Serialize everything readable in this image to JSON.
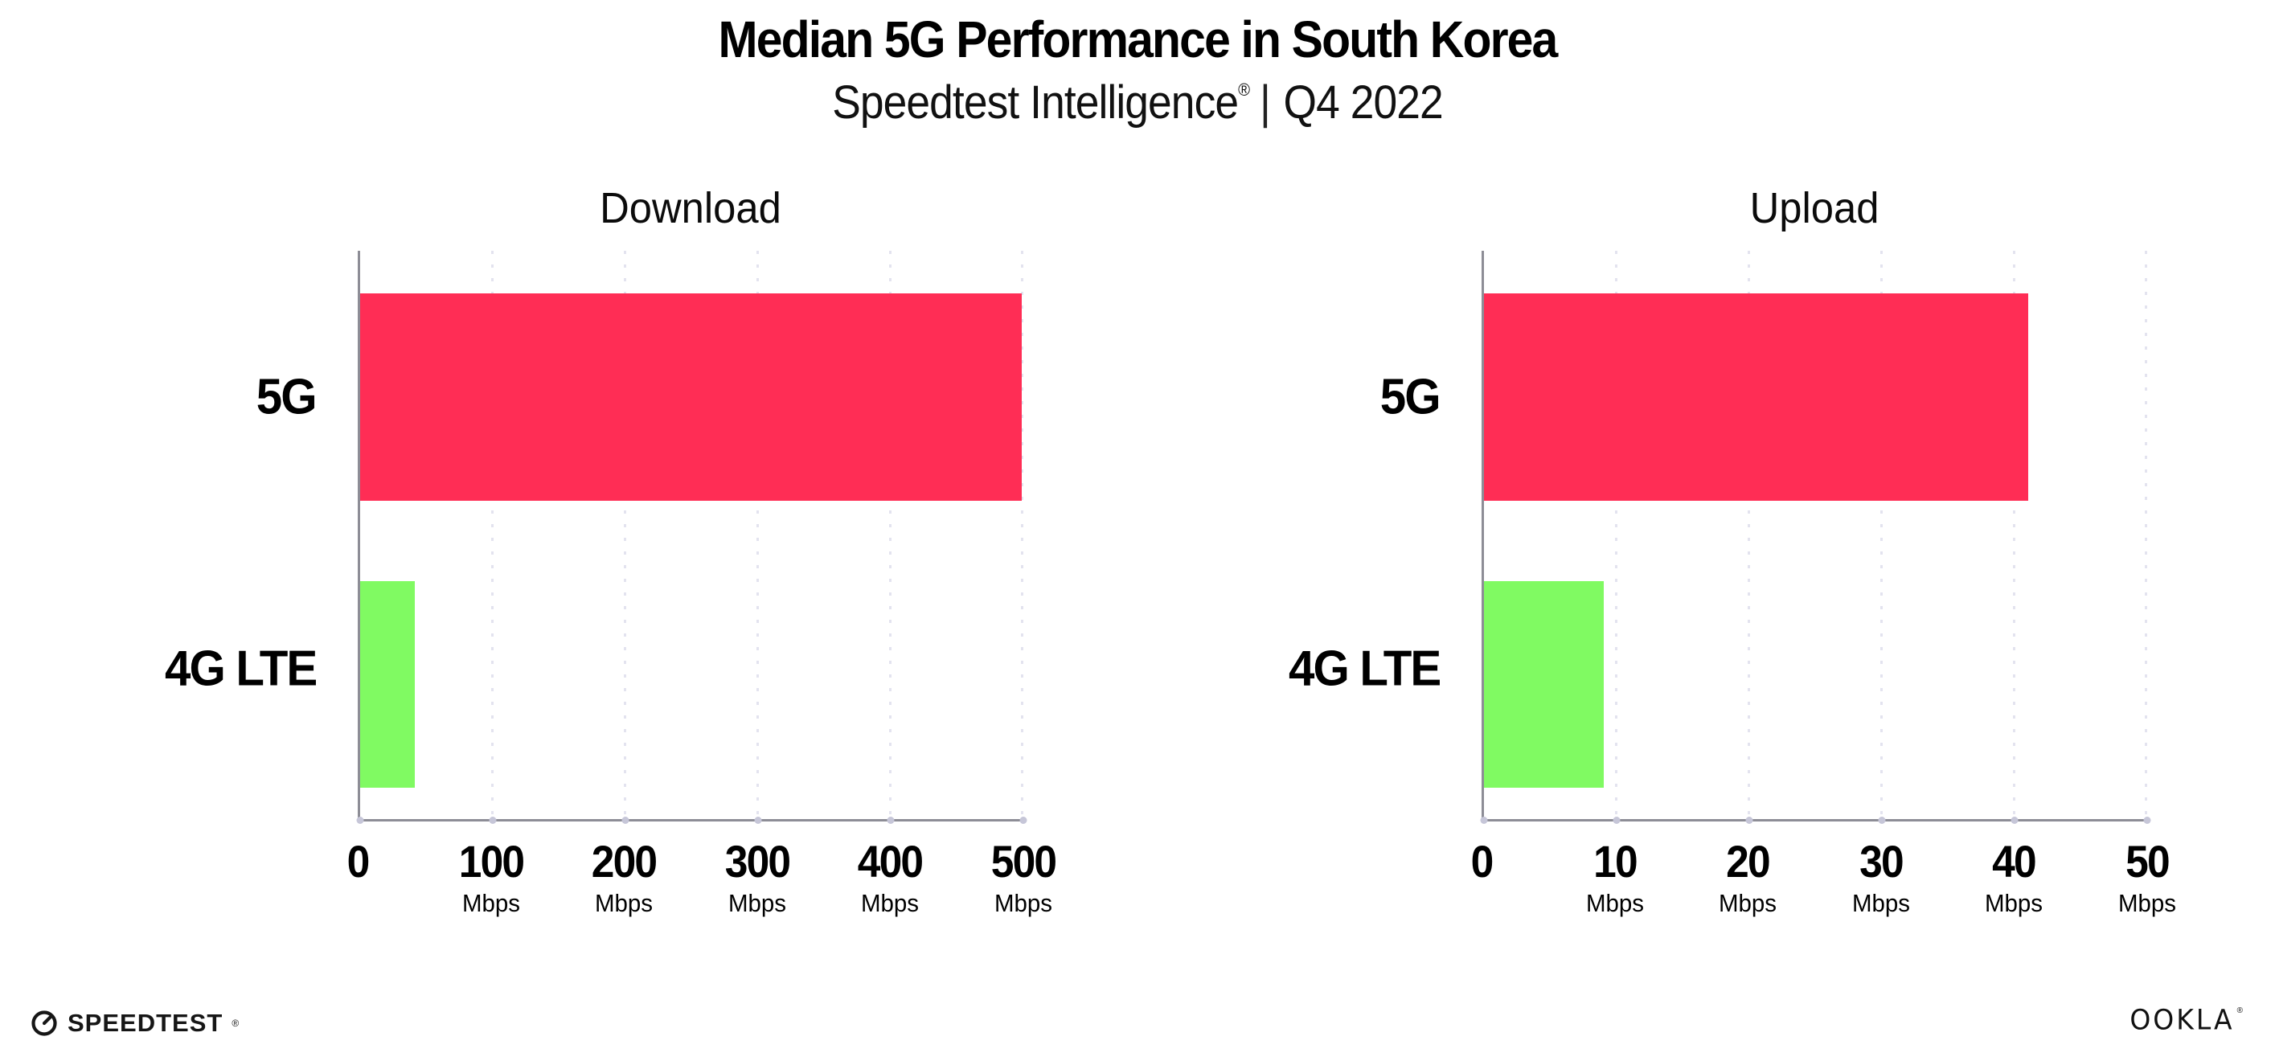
{
  "header": {
    "title": "Median 5G Performance in South Korea",
    "subtitle_brand": "Speedtest Intelligence",
    "subtitle_reg": "®",
    "subtitle_sep": "|",
    "subtitle_period": "Q4 2022"
  },
  "chart_data": [
    {
      "type": "bar",
      "orientation": "horizontal",
      "title": "Download",
      "categories": [
        "5G",
        "4G LTE"
      ],
      "values": [
        499,
        41
      ],
      "unit": "Mbps",
      "xlim": [
        0,
        500
      ],
      "grid": "vertical-dotted",
      "legend": "none",
      "xticks": [
        {
          "label": "0",
          "unit": ""
        },
        {
          "label": "100",
          "unit": "Mbps"
        },
        {
          "label": "200",
          "unit": "Mbps"
        },
        {
          "label": "300",
          "unit": "Mbps"
        },
        {
          "label": "400",
          "unit": "Mbps"
        },
        {
          "label": "500",
          "unit": "Mbps"
        }
      ]
    },
    {
      "type": "bar",
      "orientation": "horizontal",
      "title": "Upload",
      "categories": [
        "5G",
        "4G LTE"
      ],
      "values": [
        41,
        9
      ],
      "unit": "Mbps",
      "xlim": [
        0,
        50
      ],
      "grid": "vertical-dotted",
      "legend": "none",
      "xticks": [
        {
          "label": "0",
          "unit": ""
        },
        {
          "label": "10",
          "unit": "Mbps"
        },
        {
          "label": "20",
          "unit": "Mbps"
        },
        {
          "label": "30",
          "unit": "Mbps"
        },
        {
          "label": "40",
          "unit": "Mbps"
        },
        {
          "label": "50",
          "unit": "Mbps"
        }
      ]
    }
  ],
  "colors": {
    "bar_5g": "#ff2d55",
    "bar_4g_lte": "#80fa62",
    "axis": "#8d8d96",
    "grid_dot": "#e3e3ef",
    "text": "#000000"
  },
  "footer": {
    "speedtest_wordmark": "SPEEDTEST",
    "speedtest_reg": "®",
    "ookla_wordmark": "OOKLA",
    "ookla_reg": "®"
  }
}
